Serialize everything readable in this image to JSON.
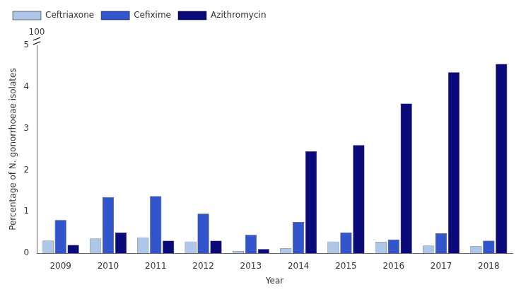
{
  "chart_data": {
    "type": "bar",
    "xlabel": "Year",
    "ylabel": "Percentage of N. gonorrhoeae isolates",
    "categories": [
      2009,
      2010,
      2011,
      2012,
      2013,
      2014,
      2015,
      2016,
      2017,
      2018
    ],
    "series": [
      {
        "name": "Ceftriaxone",
        "color": "#aec6e8",
        "values": [
          0.3,
          0.35,
          0.38,
          0.28,
          0.05,
          0.12,
          0.28,
          0.27,
          0.18,
          0.17
        ]
      },
      {
        "name": "Cefixime",
        "color": "#3355cc",
        "values": [
          0.8,
          1.35,
          1.37,
          0.95,
          0.44,
          0.75,
          0.5,
          0.33,
          0.48,
          0.3
        ]
      },
      {
        "name": "Azithromycin",
        "color": "#0a0a7a",
        "values": [
          0.2,
          0.5,
          0.3,
          0.3,
          0.1,
          2.45,
          2.6,
          3.6,
          4.35,
          4.55
        ]
      }
    ],
    "ylim": [
      0,
      5
    ],
    "yticks": [
      0,
      1,
      2,
      3,
      4,
      5
    ],
    "grid": false,
    "legend": "upper left",
    "annotations": [
      "100"
    ]
  }
}
